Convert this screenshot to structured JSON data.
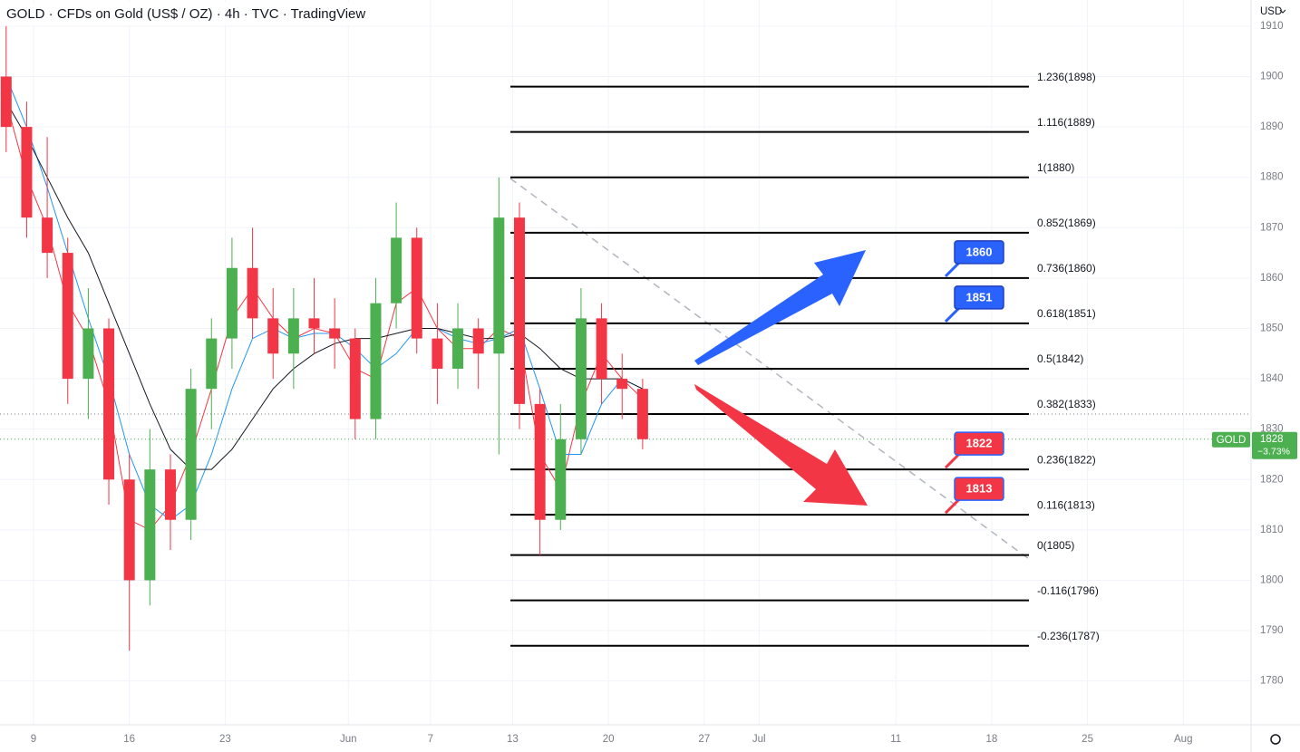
{
  "chart_data": {
    "type": "candlestick",
    "title": "GOLD · CFDs on Gold (US$ / OZ) · 4h · TVC · TradingView",
    "currency": "USD",
    "x": [
      -2,
      -0.5,
      1,
      2.5,
      4,
      5.5,
      7,
      8.5,
      10,
      11.5,
      13,
      14.5,
      16,
      17.5,
      19,
      20.5,
      22,
      23.5,
      25,
      26.5,
      28,
      29.5,
      31,
      32.5,
      34,
      35.5,
      37,
      38.5,
      40,
      41.5,
      43,
      44.5
    ],
    "open": [
      1900,
      1890,
      1872,
      1865,
      1840,
      1850,
      1820,
      1800,
      1822,
      1812,
      1838,
      1848,
      1862,
      1852,
      1845,
      1852,
      1850,
      1848,
      1832,
      1855,
      1868,
      1848,
      1842,
      1850,
      1845,
      1872,
      1835,
      1812,
      1828,
      1852,
      1840,
      1838
    ],
    "high": [
      1910,
      1895,
      1888,
      1868,
      1858,
      1852,
      1825,
      1830,
      1825,
      1842,
      1852,
      1868,
      1870,
      1858,
      1858,
      1860,
      1856,
      1850,
      1860,
      1875,
      1870,
      1855,
      1855,
      1852,
      1880,
      1875,
      1838,
      1835,
      1858,
      1855,
      1845,
      1840
    ],
    "low": [
      1885,
      1868,
      1860,
      1835,
      1832,
      1815,
      1786,
      1795,
      1806,
      1808,
      1830,
      1842,
      1848,
      1840,
      1838,
      1845,
      1842,
      1828,
      1828,
      1850,
      1845,
      1835,
      1838,
      1838,
      1825,
      1830,
      1805,
      1810,
      1825,
      1835,
      1832,
      1826
    ],
    "close": [
      1890,
      1872,
      1865,
      1840,
      1850,
      1820,
      1800,
      1822,
      1812,
      1838,
      1848,
      1862,
      1852,
      1845,
      1852,
      1850,
      1848,
      1832,
      1855,
      1868,
      1848,
      1842,
      1850,
      1845,
      1872,
      1835,
      1812,
      1828,
      1852,
      1840,
      1838,
      1828
    ],
    "up_color": "#4caf50",
    "down_color": "#f23645",
    "series": [
      {
        "color": "#f23645",
        "values": [
          1895,
          1880,
          1870,
          1855,
          1848,
          1835,
          1812,
          1810,
          1815,
          1825,
          1838,
          1852,
          1858,
          1852,
          1848,
          1850,
          1849,
          1842,
          1840,
          1855,
          1858,
          1850,
          1846,
          1846,
          1850,
          1848,
          1825,
          1818,
          1835,
          1845,
          1840,
          1836
        ]
      },
      {
        "color": "#2196f3",
        "values": [
          1900,
          1890,
          1878,
          1865,
          1852,
          1840,
          1825,
          1815,
          1812,
          1815,
          1825,
          1838,
          1848,
          1850,
          1848,
          1849,
          1849,
          1846,
          1842,
          1845,
          1850,
          1850,
          1848,
          1847,
          1848,
          1850,
          1838,
          1825,
          1825,
          1835,
          1840,
          1838
        ]
      },
      {
        "color": "#131722",
        "values": [
          1895,
          1888,
          1880,
          1872,
          1865,
          1855,
          1845,
          1835,
          1826,
          1822,
          1822,
          1826,
          1832,
          1838,
          1842,
          1845,
          1847,
          1848,
          1848,
          1849,
          1850,
          1850,
          1849,
          1848,
          1848,
          1849,
          1846,
          1842,
          1840,
          1840,
          1840,
          1838
        ]
      }
    ],
    "xlim": [
      -2.45,
      88.95
    ],
    "xticks": [
      {
        "value": 0,
        "label": "9"
      },
      {
        "value": 7,
        "label": "16"
      },
      {
        "value": 14,
        "label": "23"
      },
      {
        "value": 23,
        "label": "Jun"
      },
      {
        "value": 29,
        "label": "7"
      },
      {
        "value": 35,
        "label": "13"
      },
      {
        "value": 42,
        "label": "20"
      },
      {
        "value": 49,
        "label": "27"
      },
      {
        "value": 53,
        "label": "Jul"
      },
      {
        "value": 63,
        "label": "11"
      },
      {
        "value": 70,
        "label": "18"
      },
      {
        "value": 77,
        "label": "25"
      },
      {
        "value": 84,
        "label": "Aug"
      }
    ],
    "ylim": [
      1771.3,
      1915.2
    ],
    "yticks": [
      1780,
      1790,
      1800,
      1810,
      1820,
      1830,
      1840,
      1850,
      1860,
      1870,
      1880,
      1890,
      1900,
      1910
    ],
    "grid": true,
    "reference_line": 1833,
    "last_price": {
      "label": "GOLD",
      "value": 1828,
      "change": {
        "value": -3.73,
        "label": "−3.73%"
      }
    },
    "fib_levels": [
      {
        "value": 1898,
        "label": "1.236(1898)"
      },
      {
        "value": 1889,
        "label": "1.116(1889)"
      },
      {
        "value": 1880,
        "label": "1(1880)"
      },
      {
        "value": 1869,
        "label": "0.852(1869)"
      },
      {
        "value": 1860,
        "label": "0.736(1860)"
      },
      {
        "value": 1851,
        "label": "0.618(1851)"
      },
      {
        "value": 1842,
        "label": "0.5(1842)"
      },
      {
        "value": 1833,
        "label": "0.382(1833)"
      },
      {
        "value": 1822,
        "label": "0.236(1822)"
      },
      {
        "value": 1813,
        "label": "0.116(1813)"
      },
      {
        "value": 1805,
        "label": "0(1805)"
      },
      {
        "value": 1796,
        "label": "-0.116(1796)"
      },
      {
        "value": 1787,
        "label": "-0.236(1787)"
      }
    ],
    "callouts": [
      {
        "value": 1860,
        "color": "#2962ff"
      },
      {
        "value": 1851,
        "color": "#2962ff"
      },
      {
        "value": 1822,
        "color": "#f23645"
      },
      {
        "value": 1813,
        "color": "#f23645"
      }
    ]
  }
}
